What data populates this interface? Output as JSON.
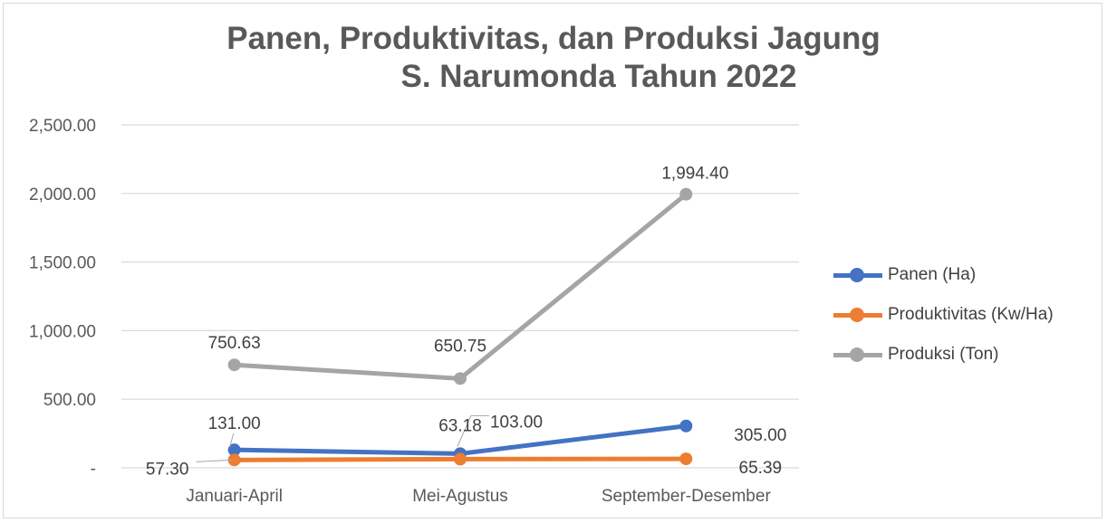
{
  "chart_data": {
    "type": "line",
    "title": [
      "Panen, Produktivitas, dan Produksi Jagung",
      "S. Narumonda Tahun 2022"
    ],
    "categories": [
      "Januari-April",
      "Mei-Agustus",
      "September-Desember"
    ],
    "ylim": [
      0,
      2500
    ],
    "yticks": [
      0,
      500,
      1000,
      1500,
      2000,
      2500
    ],
    "ytick_labels": [
      "-",
      "500.00",
      "1,000.00",
      "1,500.00",
      "2,000.00",
      "2,500.00"
    ],
    "grid": true,
    "legend_position": "right",
    "series": [
      {
        "name": "Panen (Ha)",
        "color": "#4472c4",
        "values": [
          131.0,
          103.0,
          305.0
        ],
        "labels": [
          "131.00",
          "103.00",
          "305.00"
        ]
      },
      {
        "name": "Produktivitas (Kw/Ha)",
        "color": "#ed7d31",
        "values": [
          57.3,
          63.18,
          65.39
        ],
        "labels": [
          "57.30",
          "63.18",
          "65.39"
        ]
      },
      {
        "name": "Produksi (Ton)",
        "color": "#a5a5a5",
        "values": [
          750.63,
          650.75,
          1994.4
        ],
        "labels": [
          "750.63",
          "650.75",
          "1,994.40"
        ]
      }
    ]
  }
}
